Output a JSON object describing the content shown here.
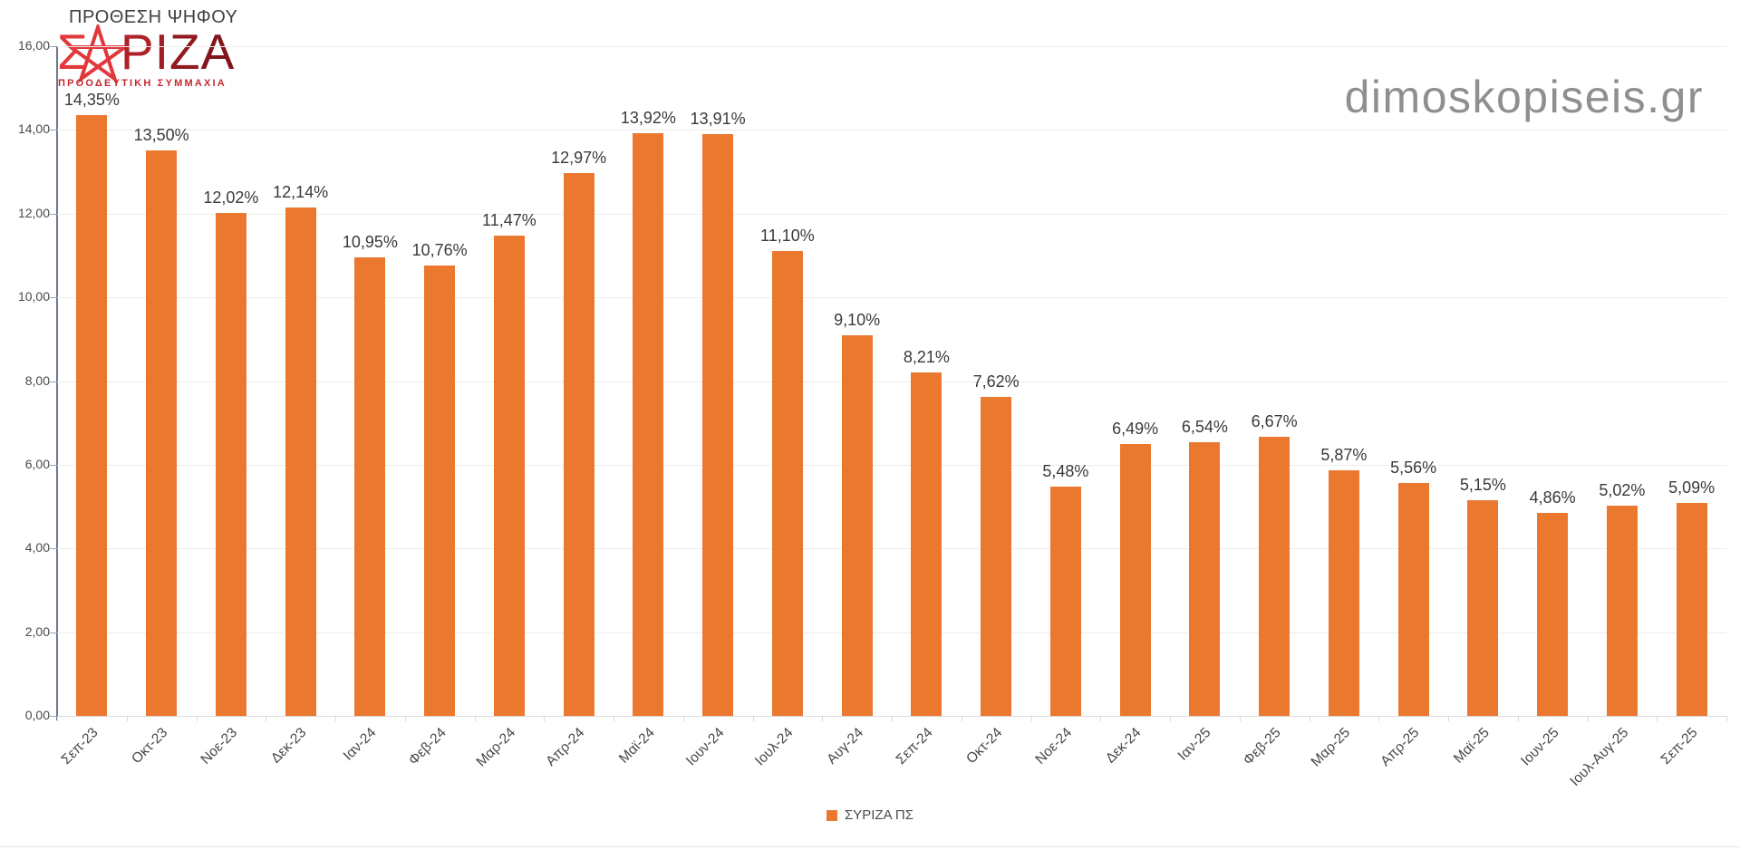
{
  "header": {
    "title": "ΠΡΟΘΕΣΗ ΨΗΦΟΥ",
    "logo": {
      "sigma": "Σ",
      "riza": {
        "0": "Ρ",
        "1": "Ι",
        "2": "Ζ",
        "3": "Α"
      },
      "subtitle": "ΠΡΟΟΔΕΥΤΙΚΗ ΣΥΜΜΑΧΙΑ",
      "star_icon": "red-star-outline"
    },
    "watermark": "dimoskopiseis.gr"
  },
  "legend": {
    "label": "ΣΥΡΙΖΑ ΠΣ",
    "swatch_color": "#EB782F",
    "position": "bottom-center"
  },
  "colors": {
    "bar": "#EB782F",
    "gridline": "#ECECEC",
    "y_axis_line": "#6E7B8A",
    "x_axis_line": "#D9D9D9",
    "value_label_text": "#3A3A3A",
    "tick_label_text": "#4A4A4A",
    "watermark_text": "#8F8F8F",
    "logo_bright_red": "#E2373B",
    "logo_dark_red": "#9C1E24",
    "title_text": "#3F3F3F"
  },
  "chart_data": {
    "type": "bar",
    "title": "ΠΡΟΘΕΣΗ ΨΗΦΟΥ",
    "series_name": "ΣΥΡΙΖΑ ΠΣ",
    "categories": [
      "Σεπ-23",
      "Οκτ-23",
      "Νοε-23",
      "Δεκ-23",
      "Ιαν-24",
      "Φεβ-24",
      "Μαρ-24",
      "Απρ-24",
      "Μαϊ-24",
      "Ιουν-24",
      "Ιουλ-24",
      "Αυγ-24",
      "Σεπ-24",
      "Οκτ-24",
      "Νοε-24",
      "Δεκ-24",
      "Ιαν-25",
      "Φεβ-25",
      "Μαρ-25",
      "Απρ-25",
      "Μαϊ-25",
      "Ιουν-25",
      "Ιουλ-Αυγ-25",
      "Σεπ-25"
    ],
    "values": [
      14.35,
      13.5,
      12.02,
      12.14,
      10.95,
      10.76,
      11.47,
      12.97,
      13.92,
      13.91,
      11.1,
      9.1,
      8.21,
      7.62,
      5.48,
      6.49,
      6.54,
      6.67,
      5.87,
      5.56,
      5.15,
      4.86,
      5.02,
      5.09
    ],
    "value_labels": [
      "14,35%",
      "13,50%",
      "12,02%",
      "12,14%",
      "10,95%",
      "10,76%",
      "11,47%",
      "12,97%",
      "13,92%",
      "13,91%",
      "11,10%",
      "9,10%",
      "8,21%",
      "7,62%",
      "5,48%",
      "6,49%",
      "6,54%",
      "6,67%",
      "5,87%",
      "5,56%",
      "5,15%",
      "4,86%",
      "5,02%",
      "5,09%"
    ],
    "xlabel": "",
    "ylabel": "",
    "ylim": [
      0,
      16
    ],
    "yticks": [
      0,
      2,
      4,
      6,
      8,
      10,
      12,
      14,
      16
    ],
    "ytick_labels": [
      "0,00",
      "2,00",
      "4,00",
      "6,00",
      "8,00",
      "10,00",
      "12,00",
      "14,00",
      "16,00"
    ],
    "grid": true,
    "legend_position": "bottom",
    "x_label_rotation_deg": -45
  }
}
